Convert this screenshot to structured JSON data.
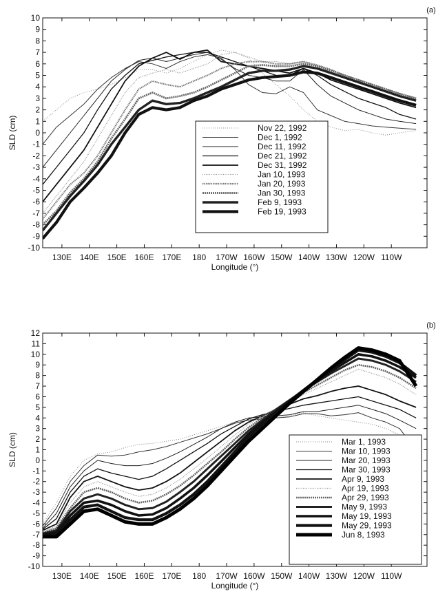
{
  "chart_data": [
    {
      "type": "line",
      "panel_label": "(a)",
      "xlabel": "Longitude (°)",
      "ylabel": "SLD (cm)",
      "xlim": [
        123,
        263
      ],
      "ylim": [
        -10,
        10
      ],
      "x_ticks": [
        {
          "value": 130,
          "label": "130E"
        },
        {
          "value": 140,
          "label": "140E"
        },
        {
          "value": 150,
          "label": "150E"
        },
        {
          "value": 160,
          "label": "160E"
        },
        {
          "value": 170,
          "label": "170E"
        },
        {
          "value": 180,
          "label": "180"
        },
        {
          "value": 190,
          "label": "170W"
        },
        {
          "value": 200,
          "label": "160W"
        },
        {
          "value": 210,
          "label": "150W"
        },
        {
          "value": 220,
          "label": "140W"
        },
        {
          "value": 230,
          "label": "130W"
        },
        {
          "value": 240,
          "label": "120W"
        },
        {
          "value": 250,
          "label": "110W"
        }
      ],
      "y_ticks": [
        -10,
        -9,
        -8,
        -7,
        -6,
        -5,
        -4,
        -3,
        -2,
        -1,
        0,
        1,
        2,
        3,
        4,
        5,
        6,
        7,
        8,
        9,
        10
      ],
      "legend_position": "center-right",
      "x": [
        123,
        128,
        133,
        138,
        143,
        148,
        153,
        158,
        163,
        168,
        173,
        178,
        183,
        188,
        193,
        198,
        203,
        208,
        213,
        218,
        223,
        228,
        233,
        238,
        243,
        248,
        253,
        259
      ],
      "series": [
        {
          "name": "Nov 22, 1992",
          "style": {
            "color": "#8a8a8a",
            "width": 1,
            "dash": "1,2"
          },
          "values": [
            1,
            2,
            3,
            3.5,
            3.8,
            4.2,
            4.8,
            5.5,
            5.5,
            5.2,
            5.6,
            6.2,
            6.8,
            7.2,
            7.0,
            6.5,
            5.2,
            4.2,
            3.2,
            2,
            1,
            0.5,
            0.2,
            0.3,
            0,
            -0.2,
            0,
            0.2
          ]
        },
        {
          "name": "Dec 1, 1992",
          "style": {
            "color": "#333333",
            "width": 1,
            "dash": ""
          },
          "values": [
            -1,
            0.5,
            1.5,
            2.5,
            3.8,
            4.8,
            5.6,
            6.2,
            6.0,
            5.6,
            6.2,
            6.6,
            6.8,
            6.5,
            5.5,
            4.2,
            3.5,
            3.4,
            4.0,
            3.5,
            2.0,
            1.5,
            1.0,
            0.8,
            0.6,
            0.5,
            0.4,
            0.3
          ]
        },
        {
          "name": "Dec 11, 1992",
          "style": {
            "color": "#222222",
            "width": 1,
            "dash": ""
          },
          "values": [
            -3,
            -1.5,
            0,
            1.5,
            3,
            4.5,
            5.5,
            6.3,
            6.5,
            6.2,
            6.5,
            6.8,
            7.0,
            6.4,
            5.6,
            5.0,
            4.8,
            4.5,
            4.5,
            5.5,
            4.2,
            3.2,
            2.6,
            2.0,
            1.6,
            1.2,
            1.0,
            0.8
          ]
        },
        {
          "name": "Dec 21, 1992",
          "style": {
            "color": "#111111",
            "width": 1.3,
            "dash": ""
          },
          "values": [
            -4.5,
            -3,
            -1.5,
            0,
            2,
            3.8,
            5,
            6,
            6.3,
            6.6,
            6.8,
            7.0,
            7.0,
            6.6,
            6.2,
            5.8,
            5.4,
            5.0,
            5.0,
            5.6,
            5.0,
            4.2,
            3.6,
            3.0,
            2.6,
            2.2,
            1.6,
            1.2
          ]
        },
        {
          "name": "Dec 31, 1992",
          "style": {
            "color": "#111111",
            "width": 1.8,
            "dash": ""
          },
          "values": [
            -6,
            -4.5,
            -3,
            -1.5,
            0.5,
            2.5,
            4.5,
            5.8,
            6.5,
            7.0,
            6.4,
            7.0,
            7.2,
            6.2,
            6.0,
            5.8,
            5.6,
            5.4,
            5.2,
            5.6,
            5.2,
            4.6,
            4.2,
            3.8,
            3.4,
            3.0,
            2.6,
            2.2
          ]
        },
        {
          "name": "Jan 10, 1993",
          "style": {
            "color": "#9a9a9a",
            "width": 1.3,
            "dash": "1,1.5"
          },
          "values": [
            -7,
            -5.5,
            -4,
            -2.5,
            -0.5,
            1.5,
            3.5,
            4.8,
            5.2,
            5.5,
            5.2,
            5.6,
            6.0,
            6.8,
            7.0,
            6.6,
            6.2,
            6.2,
            6.0,
            6.2,
            5.8,
            5.3,
            4.8,
            4.4,
            4.0,
            3.6,
            3.2,
            2.8
          ]
        },
        {
          "name": "Jan 20, 1993",
          "style": {
            "color": "#7a7a7a",
            "width": 2.2,
            "dash": "1.5,1"
          },
          "values": [
            -7.5,
            -6,
            -4.5,
            -3.5,
            -2,
            0,
            2,
            3.8,
            4.5,
            4.2,
            4.0,
            4.5,
            5.0,
            5.6,
            6.0,
            6.2,
            6.2,
            6.0,
            6.0,
            6.2,
            5.9,
            5.5,
            5.0,
            4.6,
            4.2,
            3.8,
            3.4,
            3.0
          ]
        },
        {
          "name": "Jan 30, 1993",
          "style": {
            "color": "#666666",
            "width": 2.8,
            "dash": "2,1"
          },
          "values": [
            -8,
            -6.8,
            -5.2,
            -4,
            -2.5,
            -0.5,
            1.2,
            3,
            3.5,
            3.0,
            3.2,
            3.5,
            4.0,
            4.6,
            5.2,
            5.8,
            5.9,
            5.8,
            5.8,
            6.0,
            5.8,
            5.4,
            5.0,
            4.6,
            4.2,
            3.8,
            3.4,
            3.0
          ]
        },
        {
          "name": "Feb 9, 1993",
          "style": {
            "color": "#222222",
            "width": 3.4,
            "dash": ""
          },
          "values": [
            -8.5,
            -7,
            -5.5,
            -4.2,
            -2.8,
            -1,
            0.5,
            2,
            2.8,
            2.5,
            2.6,
            3.0,
            3.5,
            4.0,
            4.6,
            5.2,
            5.4,
            5.4,
            5.5,
            5.8,
            5.6,
            5.2,
            4.8,
            4.4,
            4.0,
            3.6,
            3.2,
            2.8
          ]
        },
        {
          "name": "Feb 19, 1993",
          "style": {
            "color": "#111111",
            "width": 4.2,
            "dash": ""
          },
          "values": [
            -9.2,
            -7.8,
            -6,
            -4.8,
            -3.5,
            -2,
            0,
            1.6,
            2.2,
            2.0,
            2.2,
            2.8,
            3.2,
            3.8,
            4.2,
            4.6,
            4.8,
            4.9,
            5.0,
            5.3,
            5.2,
            4.8,
            4.4,
            4.0,
            3.6,
            3.2,
            2.8,
            2.4
          ]
        }
      ]
    },
    {
      "type": "line",
      "panel_label": "(b)",
      "xlabel": "Longitude (°)",
      "ylabel": "SLD (cm)",
      "xlim": [
        123,
        263
      ],
      "ylim": [
        -10,
        12
      ],
      "x_ticks": [
        {
          "value": 130,
          "label": "130E"
        },
        {
          "value": 140,
          "label": "140E"
        },
        {
          "value": 150,
          "label": "150E"
        },
        {
          "value": 160,
          "label": "160E"
        },
        {
          "value": 170,
          "label": "170E"
        },
        {
          "value": 180,
          "label": "180"
        },
        {
          "value": 190,
          "label": "170W"
        },
        {
          "value": 200,
          "label": "160W"
        },
        {
          "value": 210,
          "label": "150W"
        },
        {
          "value": 220,
          "label": "140W"
        },
        {
          "value": 230,
          "label": "130W"
        },
        {
          "value": 240,
          "label": "120W"
        },
        {
          "value": 250,
          "label": "110W"
        }
      ],
      "y_ticks": [
        -10,
        -9,
        -8,
        -7,
        -6,
        -5,
        -4,
        -3,
        -2,
        -1,
        0,
        1,
        2,
        3,
        4,
        5,
        6,
        7,
        8,
        9,
        10,
        11,
        12
      ],
      "legend_position": "bottom-right",
      "x": [
        123,
        128,
        133,
        138,
        143,
        148,
        153,
        158,
        163,
        168,
        173,
        178,
        183,
        188,
        193,
        198,
        203,
        208,
        213,
        218,
        223,
        228,
        233,
        238,
        243,
        248,
        253,
        259
      ],
      "series": [
        {
          "name": "Mar  1, 1993",
          "style": {
            "color": "#8a8a8a",
            "width": 1,
            "dash": "1,2"
          },
          "values": [
            -6,
            -4,
            -1.5,
            0,
            0.6,
            0.8,
            1.2,
            1.5,
            1.6,
            1.8,
            2.0,
            2.4,
            2.8,
            3.2,
            3.6,
            3.8,
            4.0,
            4.0,
            4.2,
            4.5,
            4.2,
            4.0,
            3.8,
            3.6,
            3.4,
            3.0,
            2.4,
            1.8
          ]
        },
        {
          "name": "Mar 10, 1993",
          "style": {
            "color": "#333333",
            "width": 1,
            "dash": ""
          },
          "values": [
            -6.2,
            -4.5,
            -2,
            -0.5,
            0.5,
            0.4,
            0.5,
            0.8,
            1.0,
            1.3,
            1.7,
            2.1,
            2.5,
            3.0,
            3.5,
            3.8,
            3.9,
            4.0,
            4.1,
            4.4,
            4.4,
            4.2,
            4.3,
            4.5,
            4.0,
            3.6,
            3.0,
            1.0
          ]
        },
        {
          "name": "Mar 20, 1993",
          "style": {
            "color": "#222222",
            "width": 1,
            "dash": ""
          },
          "values": [
            -6.4,
            -5,
            -2.5,
            -1,
            0,
            -0.3,
            -0.5,
            -0.5,
            -0.3,
            0.2,
            0.8,
            1.5,
            2.2,
            3.0,
            3.6,
            4.0,
            4.1,
            4.2,
            4.3,
            4.6,
            4.6,
            4.8,
            5.0,
            5.2,
            4.8,
            4.4,
            3.8,
            3.0
          ]
        },
        {
          "name": "Mar 30, 1993",
          "style": {
            "color": "#111111",
            "width": 1.3,
            "dash": ""
          },
          "values": [
            -6.5,
            -5.5,
            -3,
            -1.5,
            -0.8,
            -1.2,
            -1.5,
            -1.8,
            -1.5,
            -0.8,
            0,
            0.8,
            1.6,
            2.5,
            3.2,
            3.9,
            4.3,
            4.6,
            4.9,
            5.2,
            5.4,
            5.6,
            5.8,
            6.0,
            5.6,
            5.2,
            4.8,
            4.0
          ]
        },
        {
          "name": "Apr  9, 1993",
          "style": {
            "color": "#111111",
            "width": 1.8,
            "dash": ""
          },
          "values": [
            -6.6,
            -6,
            -3.5,
            -2,
            -1.5,
            -2,
            -2.5,
            -2.8,
            -2.6,
            -2.0,
            -1.2,
            -0.2,
            0.8,
            1.8,
            2.8,
            3.6,
            4.2,
            4.8,
            5.3,
            5.8,
            6.1,
            6.5,
            6.8,
            7.0,
            6.6,
            6.2,
            5.6,
            5.0
          ]
        },
        {
          "name": "Apr 19, 1993",
          "style": {
            "color": "#9a9a9a",
            "width": 1.3,
            "dash": "1,1.5"
          },
          "values": [
            -6.7,
            -6.2,
            -4,
            -2.5,
            -2,
            -2.5,
            -3.0,
            -3.4,
            -3.2,
            -2.6,
            -1.8,
            -0.8,
            0.2,
            1.3,
            2.4,
            3.4,
            4.2,
            4.9,
            5.5,
            6.2,
            6.8,
            7.4,
            8.0,
            8.6,
            8.2,
            7.8,
            7.2,
            6.2
          ]
        },
        {
          "name": "Apr 29, 1993",
          "style": {
            "color": "#666666",
            "width": 2.6,
            "dash": "2,1"
          },
          "values": [
            -6.8,
            -6.4,
            -4.5,
            -3,
            -2.6,
            -3.0,
            -3.6,
            -4.0,
            -3.8,
            -3.2,
            -2.4,
            -1.4,
            -0.3,
            0.8,
            2.0,
            3.1,
            4.0,
            4.8,
            5.6,
            6.4,
            7.1,
            7.8,
            8.5,
            9.0,
            8.8,
            8.4,
            7.8,
            6.8
          ]
        },
        {
          "name": "May  9, 1993",
          "style": {
            "color": "#222222",
            "width": 3.0,
            "dash": ""
          },
          "values": [
            -6.9,
            -6.6,
            -4.8,
            -3.6,
            -3.2,
            -3.6,
            -4.2,
            -4.6,
            -4.5,
            -3.9,
            -3.0,
            -2.0,
            -0.8,
            0.4,
            1.6,
            2.8,
            3.8,
            4.8,
            5.7,
            6.6,
            7.4,
            8.2,
            8.9,
            9.6,
            9.4,
            9.0,
            8.4,
            7.4
          ]
        },
        {
          "name": "May 19, 1993",
          "style": {
            "color": "#111111",
            "width": 3.6,
            "dash": ""
          },
          "values": [
            -7.0,
            -6.8,
            -5.2,
            -4.0,
            -3.8,
            -4.2,
            -4.8,
            -5.2,
            -5.1,
            -4.5,
            -3.6,
            -2.6,
            -1.4,
            -0.1,
            1.2,
            2.5,
            3.6,
            4.6,
            5.6,
            6.6,
            7.5,
            8.4,
            9.2,
            10.0,
            9.8,
            9.4,
            8.8,
            7.8
          ]
        },
        {
          "name": "May 29, 1993",
          "style": {
            "color": "#111111",
            "width": 4.2,
            "dash": ""
          },
          "values": [
            -7.1,
            -7.0,
            -5.6,
            -4.4,
            -4.2,
            -4.8,
            -5.4,
            -5.6,
            -5.6,
            -5.0,
            -4.2,
            -3.2,
            -2.0,
            -0.6,
            0.8,
            2.2,
            3.4,
            4.5,
            5.6,
            6.6,
            7.6,
            8.6,
            9.5,
            10.4,
            10.2,
            9.8,
            9.2,
            8.0
          ]
        },
        {
          "name": "Jun  8, 1993",
          "style": {
            "color": "#000000",
            "width": 5.0,
            "dash": ""
          },
          "values": [
            -7.2,
            -7.2,
            -6.0,
            -4.8,
            -4.6,
            -5.2,
            -5.8,
            -6.0,
            -6.0,
            -5.4,
            -4.6,
            -3.6,
            -2.4,
            -1.0,
            0.4,
            1.8,
            3.0,
            4.2,
            5.4,
            6.5,
            7.6,
            8.7,
            9.7,
            10.6,
            10.4,
            10.0,
            9.4,
            7.0
          ]
        }
      ]
    }
  ]
}
